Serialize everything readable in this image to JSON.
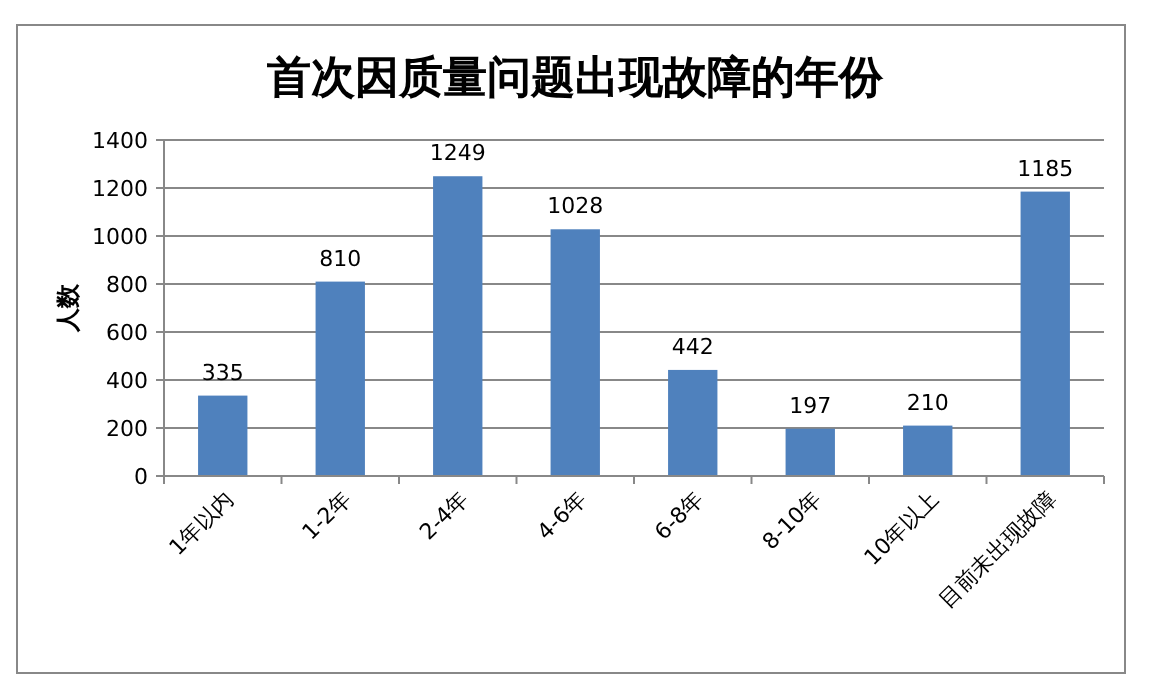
{
  "chart_data": {
    "type": "bar",
    "title": "首次因质量问题出现故障的年份",
    "ylabel": "人数",
    "categories": [
      "1年以内",
      "1-2年",
      "2-4年",
      "4-6年",
      "6-8年",
      "8-10年",
      "10年以上",
      "目前未出现故障"
    ],
    "values": [
      335,
      810,
      1249,
      1028,
      442,
      197,
      210,
      1185
    ],
    "color": "#4f81bd",
    "ylim": [
      0,
      1400
    ],
    "yticks": [
      0,
      200,
      400,
      600,
      800,
      1000,
      1200,
      1400
    ],
    "grid": "y",
    "data_labels": true
  }
}
